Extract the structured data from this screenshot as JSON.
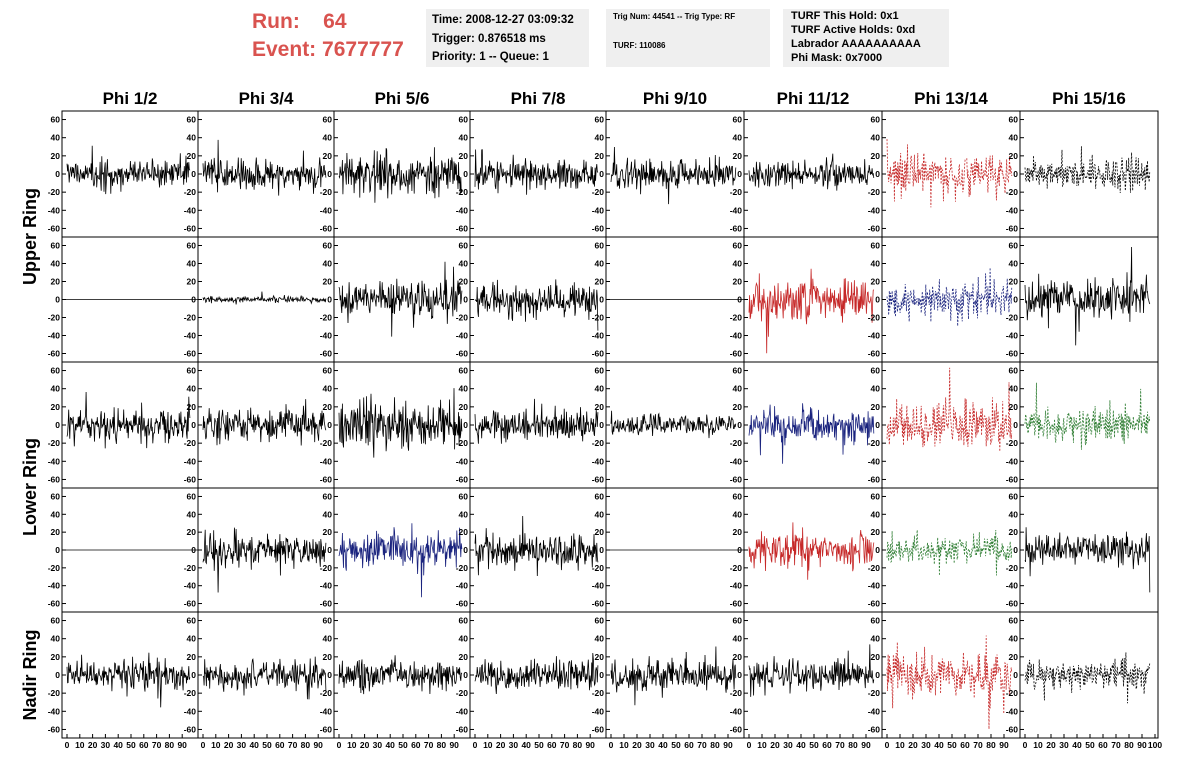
{
  "header": {
    "run_label": "Run:",
    "run_value": "64",
    "event_label": "Event:",
    "event_value": "7677777",
    "time_box": [
      "Time: 2008-12-27 03:09:32",
      "Trigger: 0.876518 ms",
      "Priority: 1 -- Queue: 1"
    ],
    "trig_box": [
      "Trig Num: 44541 -- Trig Type: RF",
      "TURF: 110086"
    ],
    "turf_box": [
      "TURF This Hold: 0x1",
      "TURF Active Holds: 0xd",
      "Labrador AAAAAAAAAA",
      "Phi Mask: 0x7000"
    ]
  },
  "chart_data": {
    "type": "line",
    "columns": [
      "Phi 1/2",
      "Phi 3/4",
      "Phi 5/6",
      "Phi 7/8",
      "Phi 9/10",
      "Phi 11/12",
      "Phi 13/14",
      "Phi 15/16"
    ],
    "row_groups": [
      {
        "label": "Upper Ring",
        "rows": [
          0,
          1
        ]
      },
      {
        "label": "Lower Ring",
        "rows": [
          2,
          3
        ]
      },
      {
        "label": "Nadir Ring",
        "rows": [
          4
        ]
      }
    ],
    "ylim": [
      -65,
      65
    ],
    "y_ticks": [
      "60",
      "40",
      "20",
      "0",
      "-20",
      "-40",
      "-60"
    ],
    "xlim": [
      0,
      100
    ],
    "x_ticks": [
      "0",
      "10",
      "20",
      "30",
      "40",
      "50",
      "60",
      "70",
      "80",
      "90",
      "100"
    ],
    "colors": {
      "black": "#000000",
      "red": "#c62828",
      "blue": "#1a237e",
      "green": "#2e7d32"
    },
    "panels": [
      [
        {
          "color": "black",
          "style": "solid",
          "amp": 13,
          "flat": false
        },
        {
          "color": "black",
          "style": "solid",
          "amp": 14,
          "flat": false
        },
        {
          "color": "black",
          "style": "solid",
          "amp": 18,
          "flat": false
        },
        {
          "color": "black",
          "style": "solid",
          "amp": 15,
          "flat": false
        },
        {
          "color": "black",
          "style": "solid",
          "amp": 13,
          "flat": false
        },
        {
          "color": "black",
          "style": "solid",
          "amp": 11,
          "flat": false
        },
        {
          "color": "red",
          "style": "dashed",
          "amp": 18,
          "flat": false
        },
        {
          "color": "black",
          "style": "dashed",
          "amp": 15,
          "flat": false
        }
      ],
      [
        {
          "color": "black",
          "style": "solid",
          "amp": 0,
          "flat": true
        },
        {
          "color": "black",
          "style": "solid",
          "amp": 3,
          "flat": false
        },
        {
          "color": "black",
          "style": "solid",
          "amp": 16,
          "flat": false
        },
        {
          "color": "black",
          "style": "solid",
          "amp": 15,
          "flat": false
        },
        {
          "color": "black",
          "style": "solid",
          "amp": 0,
          "flat": true
        },
        {
          "color": "red",
          "style": "solid",
          "amp": 20,
          "flat": false
        },
        {
          "color": "blue",
          "style": "dashed",
          "amp": 16,
          "flat": false
        },
        {
          "color": "black",
          "style": "solid",
          "amp": 18,
          "flat": false
        }
      ],
      [
        {
          "color": "black",
          "style": "solid",
          "amp": 14,
          "flat": false
        },
        {
          "color": "black",
          "style": "solid",
          "amp": 16,
          "flat": false
        },
        {
          "color": "black",
          "style": "solid",
          "amp": 22,
          "flat": false
        },
        {
          "color": "black",
          "style": "solid",
          "amp": 14,
          "flat": false
        },
        {
          "color": "black",
          "style": "solid",
          "amp": 10,
          "flat": false
        },
        {
          "color": "blue",
          "style": "solid",
          "amp": 16,
          "flat": false
        },
        {
          "color": "red",
          "style": "dashed",
          "amp": 20,
          "flat": false
        },
        {
          "color": "green",
          "style": "dashed",
          "amp": 16,
          "flat": false
        }
      ],
      [
        {
          "color": "black",
          "style": "solid",
          "amp": 0,
          "flat": true
        },
        {
          "color": "black",
          "style": "solid",
          "amp": 16,
          "flat": false
        },
        {
          "color": "blue",
          "style": "solid",
          "amp": 16,
          "flat": false
        },
        {
          "color": "black",
          "style": "solid",
          "amp": 15,
          "flat": false
        },
        {
          "color": "black",
          "style": "solid",
          "amp": 0,
          "flat": true
        },
        {
          "color": "red",
          "style": "solid",
          "amp": 16,
          "flat": false
        },
        {
          "color": "green",
          "style": "dashed",
          "amp": 14,
          "flat": false
        },
        {
          "color": "black",
          "style": "solid",
          "amp": 15,
          "flat": false
        }
      ],
      [
        {
          "color": "black",
          "style": "solid",
          "amp": 14,
          "flat": false
        },
        {
          "color": "black",
          "style": "solid",
          "amp": 12,
          "flat": false
        },
        {
          "color": "black",
          "style": "solid",
          "amp": 12,
          "flat": false
        },
        {
          "color": "black",
          "style": "solid",
          "amp": 14,
          "flat": false
        },
        {
          "color": "black",
          "style": "solid",
          "amp": 14,
          "flat": false
        },
        {
          "color": "black",
          "style": "solid",
          "amp": 13,
          "flat": false
        },
        {
          "color": "red",
          "style": "dashed",
          "amp": 22,
          "flat": false
        },
        {
          "color": "black",
          "style": "dashed",
          "amp": 12,
          "flat": false
        }
      ]
    ]
  }
}
